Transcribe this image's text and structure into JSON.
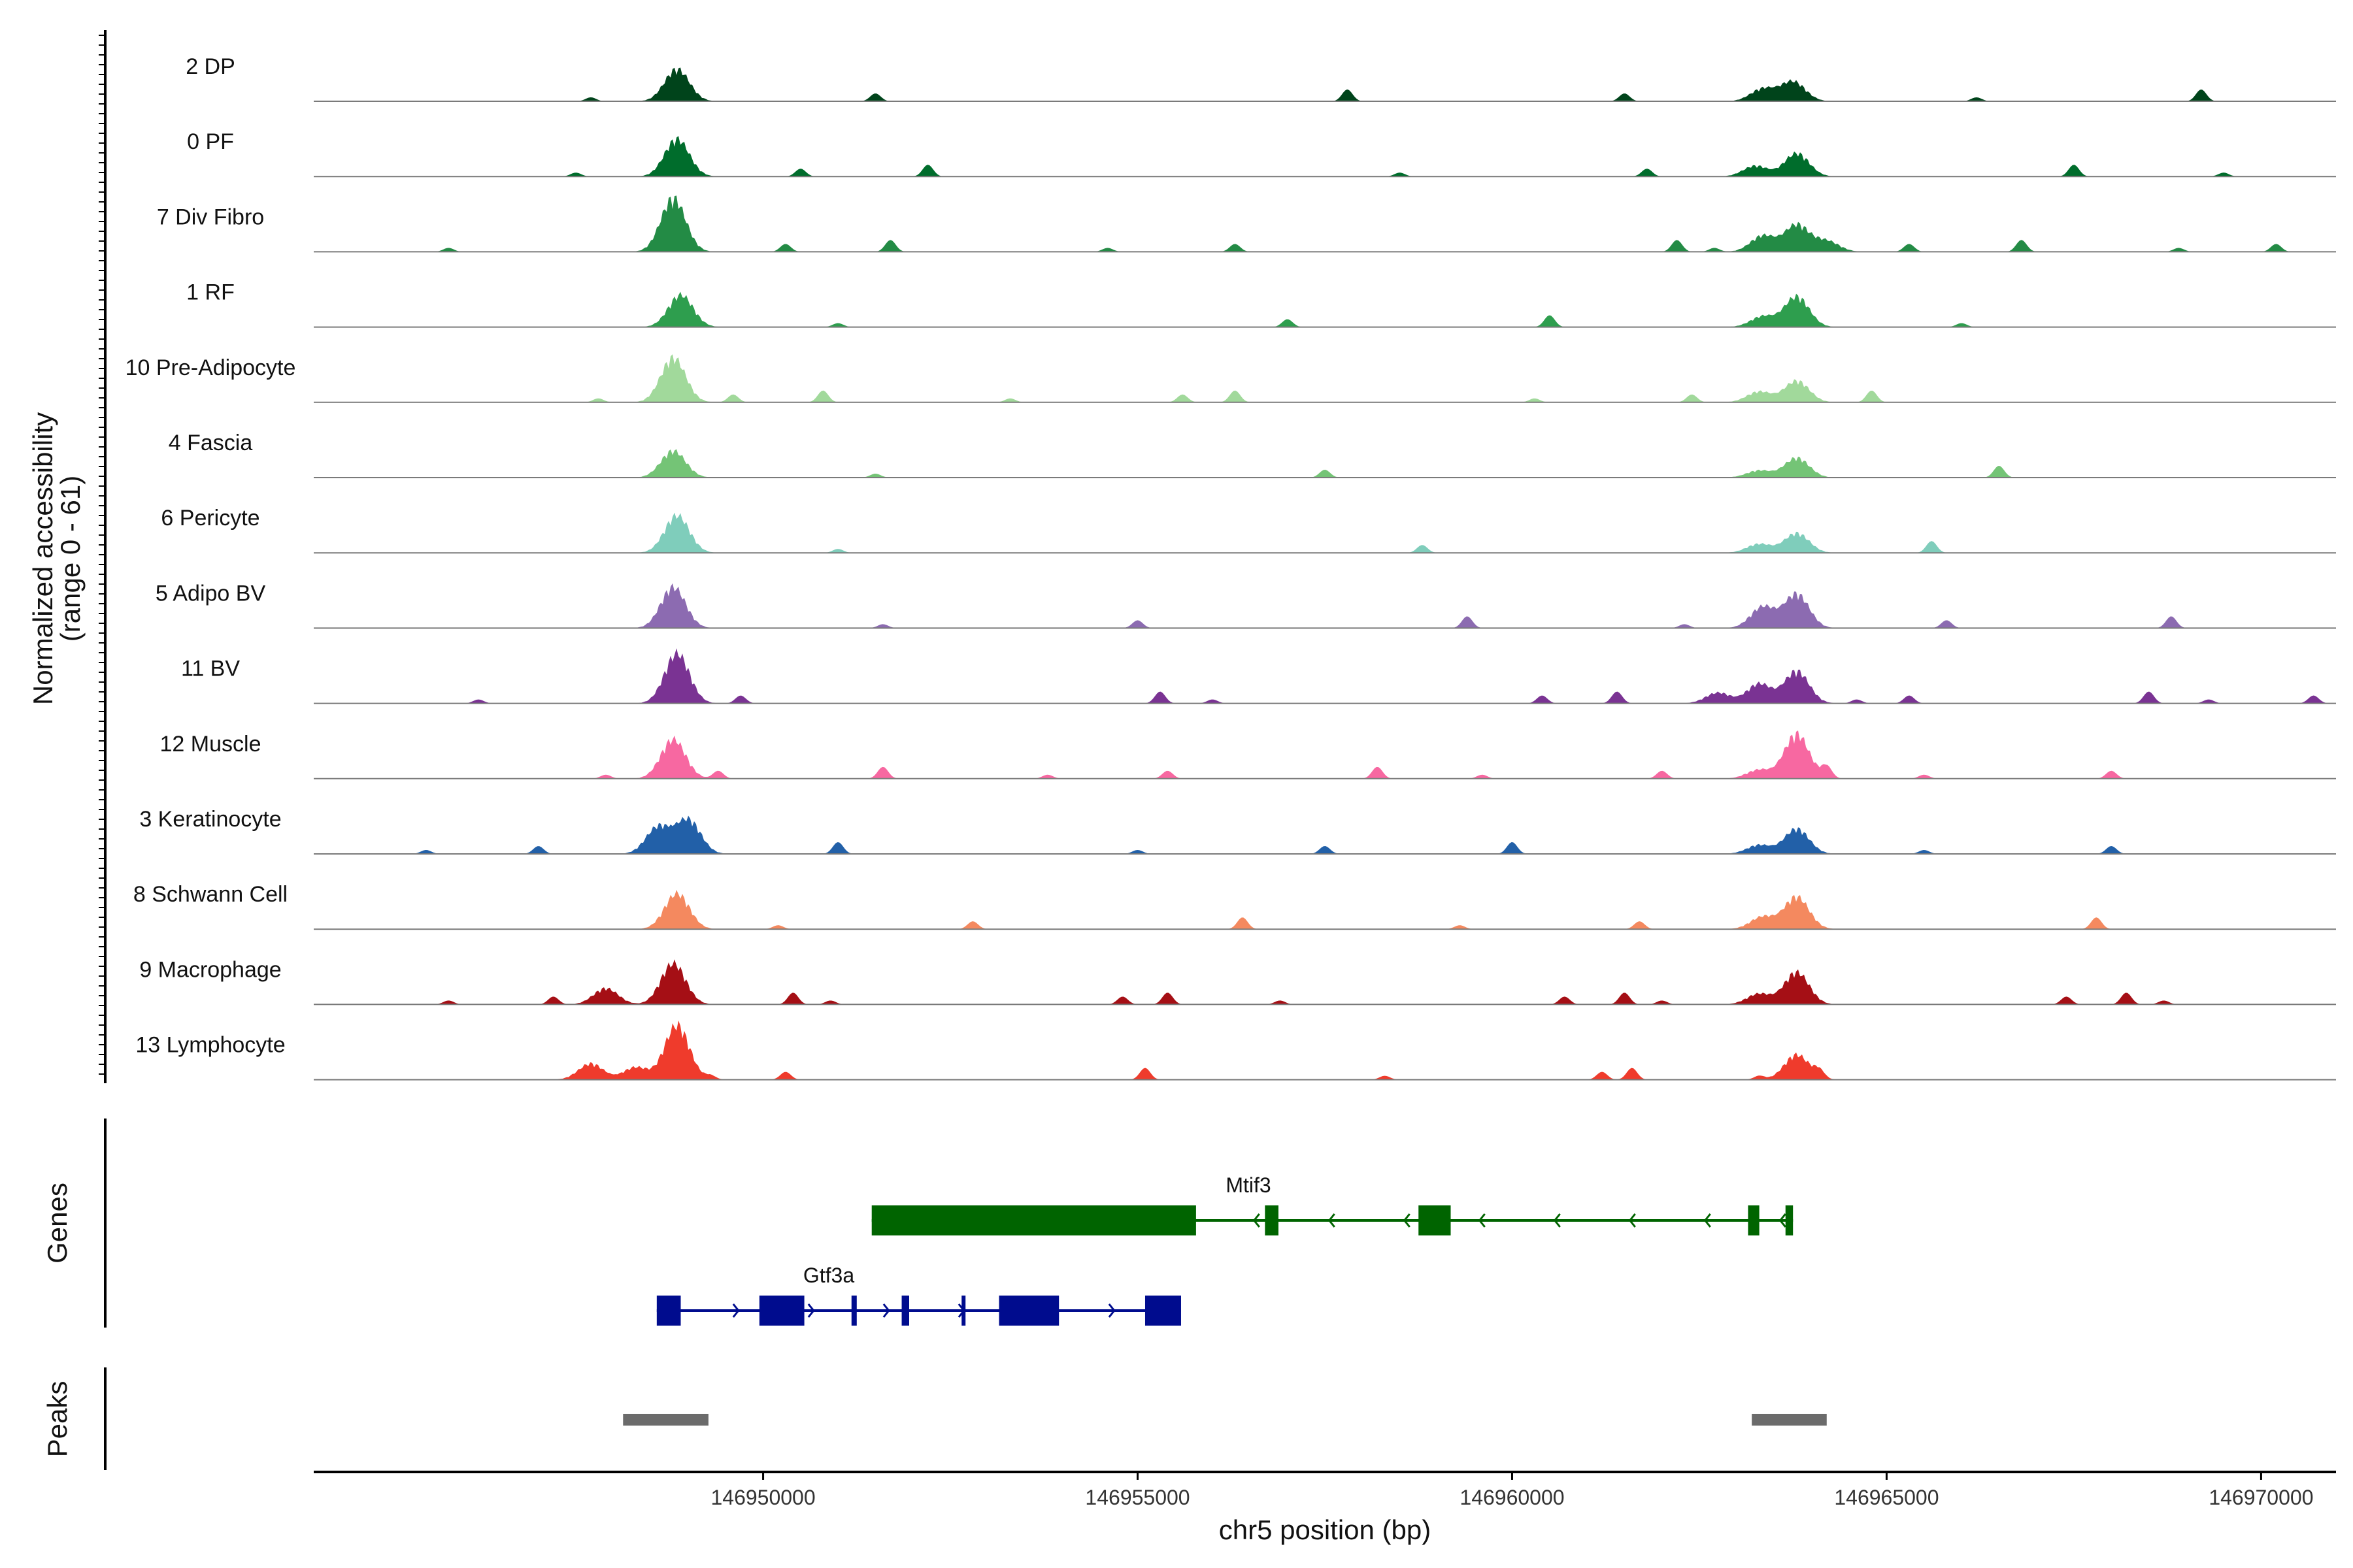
{
  "chart_data": {
    "type": "area",
    "chromosome": "chr5",
    "xlabel": "chr5 position (bp)",
    "xlim": [
      146944000,
      146971000
    ],
    "x_ticks": [
      146950000,
      146955000,
      146960000,
      146965000,
      146970000
    ],
    "x_tick_labels": [
      "146950000",
      "146955000",
      "146960000",
      "146965000",
      "146970000"
    ],
    "ylabel_line1": "Normalized accessibility",
    "ylabel_line2": "(range 0 - 61)",
    "y_range": [
      0,
      61
    ],
    "genes_label": "Genes",
    "peaks_label": "Peaks",
    "tracks": [
      {
        "name": "2 DP",
        "color": "#00441B",
        "peaks": [
          [
            146948850,
            36
          ],
          [
            146963750,
            22
          ],
          [
            146963350,
            14
          ]
        ],
        "minor": [
          146947700,
          146951500,
          146957800,
          146966200,
          146961500,
          146969200
        ]
      },
      {
        "name": "0 PF",
        "color": "#006D2C",
        "peaks": [
          [
            146948850,
            42
          ],
          [
            146963800,
            26
          ],
          [
            146963250,
            12
          ]
        ],
        "minor": [
          146947500,
          146950500,
          146952200,
          146958500,
          146961800,
          146967500,
          146969500
        ]
      },
      {
        "name": "7 Div Fibro",
        "color": "#238B45",
        "peaks": [
          [
            146948800,
            60
          ],
          [
            146963800,
            30
          ],
          [
            146963350,
            18
          ],
          [
            146964200,
            12
          ]
        ],
        "minor": [
          146945800,
          146950300,
          146951700,
          146954600,
          146956300,
          146962200,
          146962700,
          146965300,
          146966800,
          146968900,
          146970200
        ]
      },
      {
        "name": "1 RF",
        "color": "#2E9E4E",
        "peaks": [
          [
            146948900,
            36
          ],
          [
            146963800,
            34
          ],
          [
            146963350,
            12
          ]
        ],
        "minor": [
          146951000,
          146957000,
          146960500,
          146966000
        ]
      },
      {
        "name": "10 Pre-Adipocyte",
        "color": "#A1D99B",
        "peaks": [
          [
            146948800,
            50
          ],
          [
            146963800,
            24
          ],
          [
            146963300,
            12
          ]
        ],
        "minor": [
          146947800,
          146949600,
          146950800,
          146953300,
          146955600,
          146956300,
          146960300,
          146962400,
          146964800
        ]
      },
      {
        "name": "4 Fascia",
        "color": "#74C476",
        "peaks": [
          [
            146948800,
            30
          ],
          [
            146963800,
            22
          ],
          [
            146963300,
            8
          ]
        ],
        "minor": [
          146951500,
          146957500,
          146966500
        ]
      },
      {
        "name": "6 Pericyte",
        "color": "#7FCDBB",
        "peaks": [
          [
            146948850,
            42
          ],
          [
            146963800,
            22
          ],
          [
            146963300,
            10
          ]
        ],
        "minor": [
          146951000,
          146958800,
          146965600
        ]
      },
      {
        "name": "5 Adipo BV",
        "color": "#8C6BB1",
        "peaks": [
          [
            146948800,
            46
          ],
          [
            146963800,
            38
          ],
          [
            146963350,
            24
          ]
        ],
        "minor": [
          146951600,
          146955000,
          146959400,
          146962300,
          146965800,
          146968800
        ]
      },
      {
        "name": "11 BV",
        "color": "#7A3393",
        "peaks": [
          [
            146948850,
            56
          ],
          [
            146963800,
            36
          ],
          [
            146963300,
            22
          ],
          [
            146962750,
            12
          ]
        ],
        "minor": [
          146946200,
          146949700,
          146955300,
          146956000,
          146960400,
          146961400,
          146964600,
          146965300,
          146968500,
          146969300,
          146970700
        ]
      },
      {
        "name": "12 Muscle",
        "color": "#F768A1",
        "peaks": [
          [
            146948800,
            44
          ],
          [
            146963800,
            50
          ],
          [
            146963300,
            10
          ]
        ],
        "minor": [
          146947900,
          146949400,
          146951600,
          146953800,
          146955400,
          146958200,
          146959600,
          146962000,
          146964200,
          146965500,
          146968000
        ]
      },
      {
        "name": "3 Keratinocyte",
        "color": "#2260A8",
        "peaks": [
          [
            146948600,
            30
          ],
          [
            146949000,
            38
          ],
          [
            146963800,
            28
          ],
          [
            146963300,
            10
          ]
        ],
        "minor": [
          146945500,
          146947000,
          146951000,
          146955000,
          146957500,
          146960000,
          146965500,
          146968000
        ]
      },
      {
        "name": "8 Schwann Cell",
        "color": "#F4895F",
        "peaks": [
          [
            146948850,
            40
          ],
          [
            146963800,
            36
          ],
          [
            146963350,
            14
          ]
        ],
        "minor": [
          146950200,
          146952800,
          146956400,
          146959300,
          146961700,
          146967800
        ]
      },
      {
        "name": "9 Macrophage",
        "color": "#A50F15",
        "peaks": [
          [
            146948800,
            46
          ],
          [
            146963800,
            36
          ],
          [
            146963300,
            12
          ],
          [
            146947900,
            18
          ]
        ],
        "minor": [
          146945800,
          146947200,
          146950400,
          146950900,
          146954800,
          146955400,
          146956900,
          146960700,
          146961500,
          146962000,
          146967400,
          146968200,
          146968700
        ]
      },
      {
        "name": "13 Lymphocyte",
        "color": "#EF3B2C",
        "peaks": [
          [
            146948850,
            61
          ],
          [
            146963800,
            28
          ],
          [
            146947700,
            18
          ],
          [
            146948300,
            14
          ]
        ],
        "minor": [
          146949300,
          146950300,
          146955100,
          146958300,
          146961200,
          146961600,
          146963300,
          146964100
        ]
      }
    ],
    "genes": [
      {
        "name": "Gtf3a",
        "strand": "+",
        "color": "#000C8E",
        "row": 2,
        "start": 146948580,
        "end": 146955580,
        "exons": [
          [
            146948580,
            146948900
          ],
          [
            146949950,
            146950550
          ],
          [
            146951180,
            146951250
          ],
          [
            146951850,
            146951950
          ],
          [
            146952650,
            146952700
          ],
          [
            146953150,
            146953950
          ],
          [
            146955100,
            146955580
          ]
        ]
      },
      {
        "name": "Mtif3",
        "strand": "-",
        "color": "#006400",
        "row": 1,
        "start": 146951450,
        "end": 146963750,
        "exons": [
          [
            146951450,
            146955780
          ],
          [
            146956700,
            146956880
          ],
          [
            146958750,
            146959180
          ],
          [
            146963150,
            146963300
          ],
          [
            146963650,
            146963750
          ]
        ]
      }
    ],
    "peaks_regions": [
      [
        146948130,
        146949270
      ],
      [
        146963200,
        146964200
      ]
    ]
  }
}
